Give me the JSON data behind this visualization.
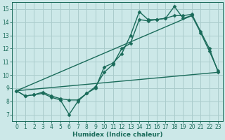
{
  "bg_color": "#cce8e8",
  "grid_color": "#aacccc",
  "line_color": "#1a6b5a",
  "xlabel": "Humidex (Indice chaleur)",
  "xlim": [
    -0.5,
    23.5
  ],
  "ylim": [
    6.5,
    15.5
  ],
  "yticks": [
    7,
    8,
    9,
    10,
    11,
    12,
    13,
    14,
    15
  ],
  "xticks": [
    0,
    1,
    2,
    3,
    4,
    5,
    6,
    7,
    8,
    9,
    10,
    11,
    12,
    13,
    14,
    15,
    16,
    17,
    18,
    19,
    20,
    21,
    22,
    23
  ],
  "series": [
    {
      "x": [
        0,
        1,
        2,
        3,
        4,
        5,
        6,
        7,
        8,
        9,
        10,
        11,
        12,
        13,
        14,
        15,
        16,
        17,
        18,
        19,
        20,
        21,
        22,
        23
      ],
      "y": [
        8.8,
        8.4,
        8.5,
        8.6,
        8.3,
        8.1,
        7.0,
        8.0,
        8.6,
        9.0,
        10.6,
        10.9,
        11.6,
        13.0,
        14.8,
        14.2,
        14.2,
        14.3,
        15.2,
        14.3,
        14.5,
        13.2,
        11.8,
        10.3
      ],
      "marker": "D",
      "markersize": 2.5,
      "linewidth": 1.0,
      "has_marker": true
    },
    {
      "x": [
        0,
        1,
        2,
        3,
        4,
        5,
        6,
        7,
        8,
        9,
        10,
        11,
        12,
        13,
        14,
        15,
        16,
        17,
        18,
        19,
        20,
        21,
        22,
        23
      ],
      "y": [
        8.8,
        8.4,
        8.5,
        8.7,
        8.4,
        8.2,
        8.1,
        8.1,
        8.6,
        9.1,
        10.2,
        10.8,
        12.0,
        12.4,
        14.2,
        14.1,
        14.2,
        14.3,
        14.5,
        14.5,
        14.6,
        13.3,
        12.0,
        10.2
      ],
      "marker": "D",
      "markersize": 2.5,
      "linewidth": 1.0,
      "has_marker": true
    },
    {
      "x": [
        0,
        23
      ],
      "y": [
        8.8,
        10.2
      ],
      "marker": null,
      "markersize": 0,
      "linewidth": 1.0,
      "has_marker": false
    },
    {
      "x": [
        0,
        20
      ],
      "y": [
        8.8,
        14.5
      ],
      "marker": null,
      "markersize": 0,
      "linewidth": 1.0,
      "has_marker": false
    }
  ],
  "tick_fontsize": 5.5,
  "xlabel_fontsize": 6.5,
  "xlabel_fontweight": "bold"
}
